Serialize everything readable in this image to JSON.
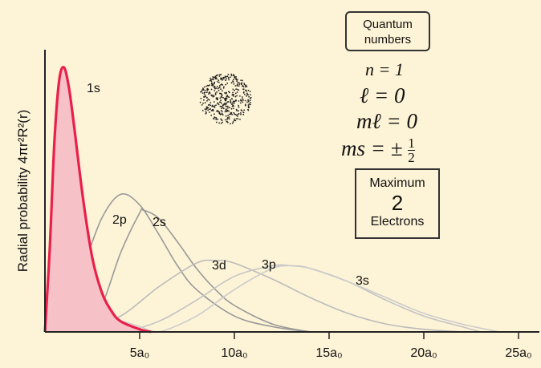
{
  "chart_data": {
    "type": "line",
    "xlabel": "",
    "ylabel": "Radial probability 4πr²R²(r)",
    "x_unit_note": "a₀",
    "xlim": [
      0,
      25
    ],
    "ylim": [
      0,
      1
    ],
    "xticks": [
      {
        "value": 5,
        "label": "5a₀"
      },
      {
        "value": 10,
        "label": "10a₀"
      },
      {
        "value": 15,
        "label": "15a₀"
      },
      {
        "value": 20,
        "label": "20a₀"
      },
      {
        "value": 25,
        "label": "25a₀"
      }
    ],
    "series": [
      {
        "name": "1s",
        "color": "#e8204a",
        "fill": "#f7c1c8",
        "highlighted": true,
        "points": [
          [
            0,
            0
          ],
          [
            0.25,
            0.31
          ],
          [
            0.5,
            0.72
          ],
          [
            0.75,
            0.95
          ],
          [
            1.0,
            1.0
          ],
          [
            1.25,
            0.93
          ],
          [
            1.5,
            0.8
          ],
          [
            2.0,
            0.51
          ],
          [
            2.5,
            0.28
          ],
          [
            3.0,
            0.15
          ],
          [
            3.5,
            0.08
          ],
          [
            4.0,
            0.04
          ],
          [
            5.0,
            0.01
          ],
          [
            5.6,
            0.0
          ]
        ]
      },
      {
        "name": "2p",
        "color": "#999999",
        "points": [
          [
            0,
            0
          ],
          [
            1,
            0.06
          ],
          [
            2,
            0.24
          ],
          [
            3,
            0.43
          ],
          [
            4,
            0.52
          ],
          [
            5,
            0.48
          ],
          [
            6,
            0.37
          ],
          [
            7,
            0.25
          ],
          [
            8,
            0.16
          ],
          [
            10,
            0.06
          ],
          [
            12,
            0.02
          ],
          [
            14,
            0.0
          ]
        ]
      },
      {
        "name": "2s",
        "color": "#999999",
        "points": [
          [
            0,
            0
          ],
          [
            0.5,
            0.06
          ],
          [
            1,
            0.09
          ],
          [
            1.5,
            0.06
          ],
          [
            2,
            0.0
          ],
          [
            3,
            0.1
          ],
          [
            4,
            0.3
          ],
          [
            5,
            0.45
          ],
          [
            5.2,
            0.46
          ],
          [
            6,
            0.43
          ],
          [
            7,
            0.34
          ],
          [
            8,
            0.24
          ],
          [
            9,
            0.16
          ],
          [
            10,
            0.1
          ],
          [
            12,
            0.03
          ],
          [
            14,
            0.0
          ]
        ]
      },
      {
        "name": "3d",
        "color": "#bbbbbb",
        "points": [
          [
            0,
            0
          ],
          [
            2,
            0.01
          ],
          [
            4,
            0.06
          ],
          [
            6,
            0.17
          ],
          [
            8,
            0.26
          ],
          [
            9,
            0.27
          ],
          [
            10,
            0.26
          ],
          [
            12,
            0.2
          ],
          [
            14,
            0.13
          ],
          [
            16,
            0.07
          ],
          [
            18,
            0.03
          ],
          [
            20,
            0.01
          ],
          [
            22,
            0.0
          ]
        ]
      },
      {
        "name": "3p",
        "color": "#c4c4c4",
        "points": [
          [
            0,
            0
          ],
          [
            1,
            0.03
          ],
          [
            2,
            0.04
          ],
          [
            3,
            0.02
          ],
          [
            4,
            0.0
          ],
          [
            6,
            0.04
          ],
          [
            8,
            0.12
          ],
          [
            10,
            0.21
          ],
          [
            12,
            0.25
          ],
          [
            13,
            0.25
          ],
          [
            14,
            0.24
          ],
          [
            16,
            0.19
          ],
          [
            18,
            0.12
          ],
          [
            20,
            0.06
          ],
          [
            22,
            0.02
          ],
          [
            23,
            0.0
          ]
        ]
      },
      {
        "name": "3s",
        "color": "#cccccc",
        "points": [
          [
            0,
            0
          ],
          [
            0.7,
            0.03
          ],
          [
            1.3,
            0.02
          ],
          [
            1.9,
            0.0
          ],
          [
            3,
            0.03
          ],
          [
            4,
            0.04
          ],
          [
            5,
            0.02
          ],
          [
            6,
            0.0
          ],
          [
            8,
            0.06
          ],
          [
            10,
            0.16
          ],
          [
            12,
            0.24
          ],
          [
            13.1,
            0.25
          ],
          [
            14,
            0.24
          ],
          [
            16,
            0.19
          ],
          [
            18,
            0.13
          ],
          [
            20,
            0.07
          ],
          [
            22,
            0.03
          ],
          [
            24,
            0.0
          ]
        ]
      }
    ]
  },
  "quantum_box": {
    "line1": "Quantum",
    "line2": "numbers"
  },
  "quantum_numbers": {
    "n": "n = 1",
    "l": "ℓ = 0",
    "ml": "mℓ = 0",
    "ms_prefix": "ms = ±",
    "ms_num": "1",
    "ms_den": "2"
  },
  "max_box": {
    "line1": "Maximum",
    "line2": "2",
    "line3": "Electrons"
  },
  "colors": {
    "background": "#fdf3d6",
    "axis": "#222222"
  }
}
